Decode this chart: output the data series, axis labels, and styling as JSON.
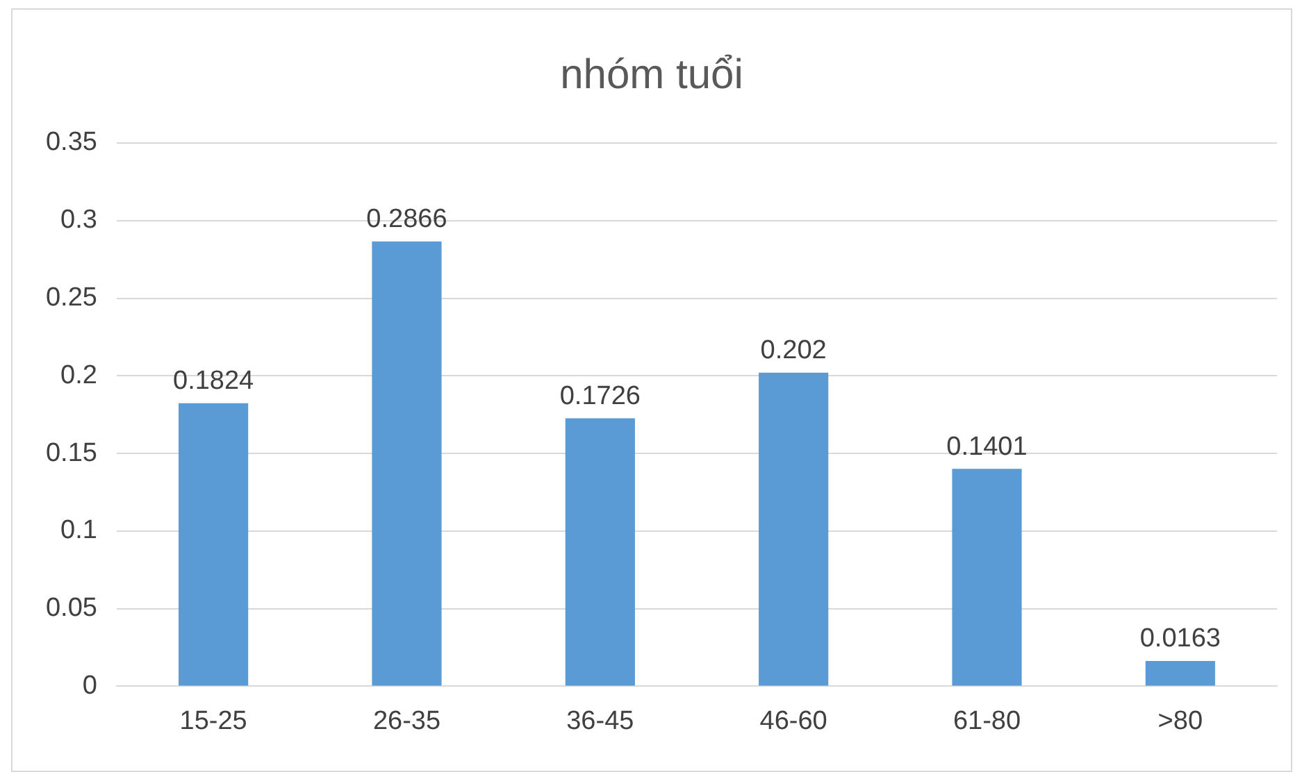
{
  "chart_data": {
    "type": "bar",
    "title": "nhóm tuổi",
    "categories": [
      "15-25",
      "26-35",
      "36-45",
      "46-60",
      "61-80",
      ">80"
    ],
    "values": [
      0.1824,
      0.2866,
      0.1726,
      0.202,
      0.1401,
      0.0163
    ],
    "color": "#5b9bd5",
    "ylim": [
      0,
      0.35
    ],
    "yticks": [
      0,
      0.05,
      0.1,
      0.15,
      0.2,
      0.25,
      0.3,
      0.35
    ],
    "grid": "y",
    "data_labels": true,
    "legend": false
  }
}
